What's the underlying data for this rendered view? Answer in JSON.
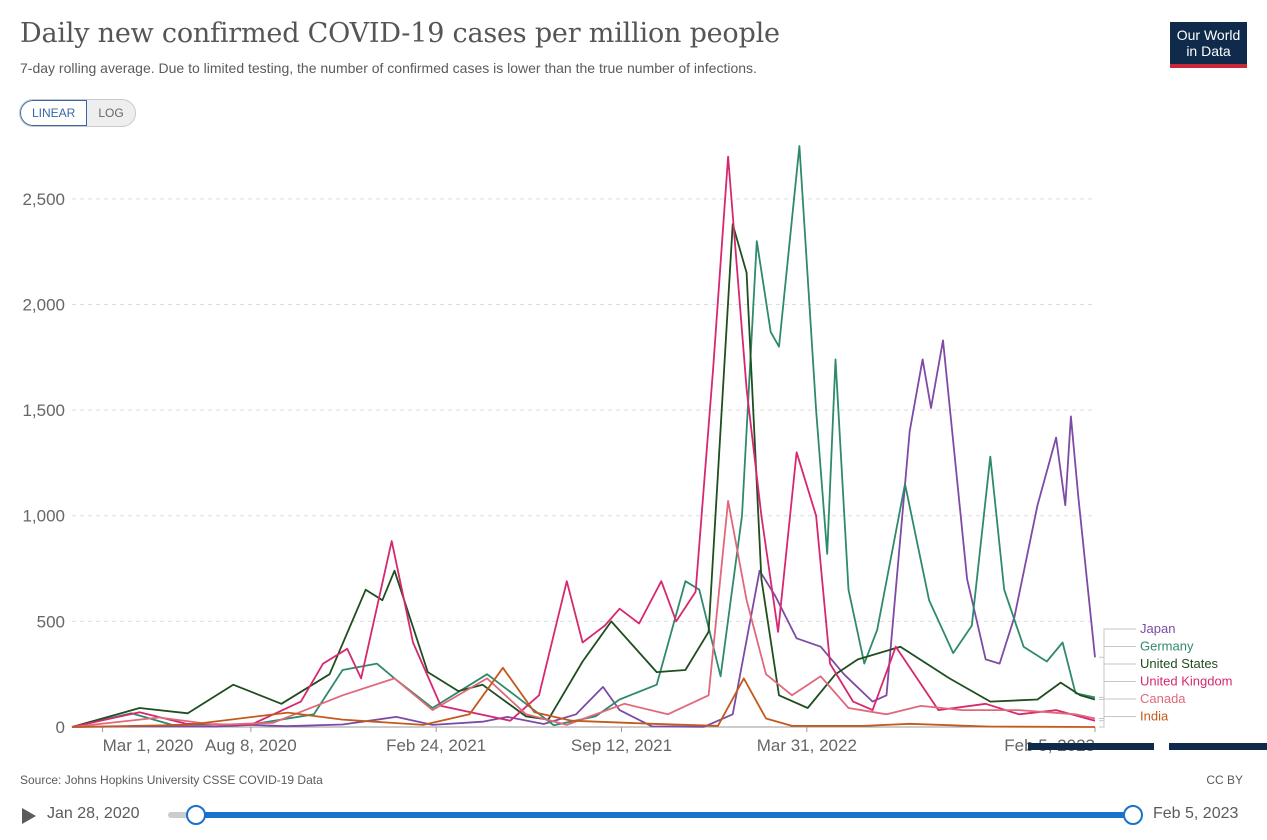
{
  "header": {
    "title": "Daily new confirmed COVID-19 cases per million people",
    "subtitle": "7-day rolling average. Due to limited testing, the number of confirmed cases is lower than the true number of infections.",
    "logo_line1": "Our World",
    "logo_line2": "in Data"
  },
  "scale_toggle": {
    "linear_label": "LINEAR",
    "log_label": "LOG",
    "selected": "LINEAR"
  },
  "footer": {
    "source": "Source: Johns Hopkins University CSSE COVID-19 Data",
    "license": "CC BY"
  },
  "timeline": {
    "start_label": "Jan 28, 2020",
    "end_label": "Feb 5, 2023"
  },
  "chart_data": {
    "type": "line",
    "title": "Daily new confirmed COVID-19 cases per million people",
    "subtitle": "7-day rolling average. Due to limited testing, the number of confirmed cases is lower than the true number of infections.",
    "x_range": [
      "2020-01-28",
      "2023-02-05"
    ],
    "x_ticks": [
      {
        "date": "2020-03-01",
        "label": "Mar 1, 2020"
      },
      {
        "date": "2020-08-08",
        "label": "Aug 8, 2020"
      },
      {
        "date": "2021-02-24",
        "label": "Feb 24, 2021"
      },
      {
        "date": "2021-09-12",
        "label": "Sep 12, 2021"
      },
      {
        "date": "2022-03-31",
        "label": "Mar 31, 2022"
      },
      {
        "date": "2023-02-05",
        "label": "Feb 5, 2023"
      }
    ],
    "y_ticks": [
      0,
      500,
      1000,
      1500,
      2000,
      2500
    ],
    "ylim": [
      0,
      2750
    ],
    "grid": "horizontal dashed",
    "legend": "right end of lines",
    "series": [
      {
        "name": "Japan",
        "color": "#7d4aa6",
        "points": [
          [
            "2020-01-28",
            0
          ],
          [
            "2020-04-15",
            3
          ],
          [
            "2020-07-01",
            2
          ],
          [
            "2020-08-08",
            10
          ],
          [
            "2020-09-15",
            4
          ],
          [
            "2020-11-15",
            12
          ],
          [
            "2021-01-12",
            48
          ],
          [
            "2021-02-20",
            10
          ],
          [
            "2021-04-15",
            25
          ],
          [
            "2021-05-12",
            48
          ],
          [
            "2021-06-20",
            14
          ],
          [
            "2021-07-25",
            60
          ],
          [
            "2021-08-23",
            190
          ],
          [
            "2021-09-10",
            80
          ],
          [
            "2021-10-15",
            3
          ],
          [
            "2021-12-10",
            1
          ],
          [
            "2022-01-10",
            60
          ],
          [
            "2022-02-08",
            740
          ],
          [
            "2022-02-25",
            620
          ],
          [
            "2022-03-20",
            420
          ],
          [
            "2022-04-15",
            380
          ],
          [
            "2022-05-10",
            250
          ],
          [
            "2022-06-10",
            120
          ],
          [
            "2022-06-25",
            150
          ],
          [
            "2022-07-20",
            1400
          ],
          [
            "2022-08-03",
            1740
          ],
          [
            "2022-08-12",
            1510
          ],
          [
            "2022-08-25",
            1830
          ],
          [
            "2022-09-20",
            700
          ],
          [
            "2022-10-10",
            320
          ],
          [
            "2022-10-25",
            300
          ],
          [
            "2022-11-10",
            520
          ],
          [
            "2022-12-05",
            1050
          ],
          [
            "2022-12-25",
            1370
          ],
          [
            "2023-01-04",
            1050
          ],
          [
            "2023-01-10",
            1470
          ],
          [
            "2023-01-18",
            1090
          ],
          [
            "2023-02-05",
            330
          ]
        ]
      },
      {
        "name": "Germany",
        "color": "#2f8a6b",
        "points": [
          [
            "2020-01-28",
            0
          ],
          [
            "2020-04-01",
            65
          ],
          [
            "2020-05-15",
            10
          ],
          [
            "2020-08-08",
            12
          ],
          [
            "2020-10-15",
            60
          ],
          [
            "2020-11-15",
            270
          ],
          [
            "2020-12-22",
            300
          ],
          [
            "2021-01-10",
            230
          ],
          [
            "2021-02-20",
            90
          ],
          [
            "2021-04-20",
            250
          ],
          [
            "2021-05-20",
            150
          ],
          [
            "2021-07-01",
            8
          ],
          [
            "2021-08-15",
            50
          ],
          [
            "2021-09-10",
            130
          ],
          [
            "2021-10-20",
            200
          ],
          [
            "2021-11-20",
            690
          ],
          [
            "2021-12-05",
            650
          ],
          [
            "2021-12-28",
            240
          ],
          [
            "2022-01-20",
            1000
          ],
          [
            "2022-02-05",
            2300
          ],
          [
            "2022-02-20",
            1870
          ],
          [
            "2022-03-01",
            1800
          ],
          [
            "2022-03-23",
            2750
          ],
          [
            "2022-04-10",
            1500
          ],
          [
            "2022-04-22",
            820
          ],
          [
            "2022-05-01",
            1740
          ],
          [
            "2022-05-15",
            650
          ],
          [
            "2022-06-01",
            300
          ],
          [
            "2022-06-15",
            460
          ],
          [
            "2022-07-15",
            1150
          ],
          [
            "2022-08-10",
            600
          ],
          [
            "2022-09-05",
            350
          ],
          [
            "2022-09-25",
            480
          ],
          [
            "2022-10-15",
            1280
          ],
          [
            "2022-10-30",
            650
          ],
          [
            "2022-11-20",
            380
          ],
          [
            "2022-12-15",
            310
          ],
          [
            "2023-01-01",
            400
          ],
          [
            "2023-01-15",
            160
          ],
          [
            "2023-02-05",
            140
          ]
        ]
      },
      {
        "name": "United States",
        "color": "#1f4e1f",
        "points": [
          [
            "2020-01-28",
            0
          ],
          [
            "2020-04-10",
            90
          ],
          [
            "2020-06-01",
            65
          ],
          [
            "2020-07-20",
            200
          ],
          [
            "2020-09-10",
            110
          ],
          [
            "2020-11-01",
            250
          ],
          [
            "2020-12-10",
            650
          ],
          [
            "2020-12-28",
            600
          ],
          [
            "2021-01-10",
            740
          ],
          [
            "2021-02-15",
            260
          ],
          [
            "2021-03-20",
            170
          ],
          [
            "2021-04-15",
            200
          ],
          [
            "2021-06-01",
            50
          ],
          [
            "2021-06-25",
            35
          ],
          [
            "2021-08-01",
            310
          ],
          [
            "2021-09-01",
            500
          ],
          [
            "2021-10-20",
            260
          ],
          [
            "2021-11-20",
            270
          ],
          [
            "2021-12-15",
            450
          ],
          [
            "2022-01-10",
            2380
          ],
          [
            "2022-01-25",
            2150
          ],
          [
            "2022-02-10",
            700
          ],
          [
            "2022-03-01",
            150
          ],
          [
            "2022-04-01",
            90
          ],
          [
            "2022-05-01",
            250
          ],
          [
            "2022-05-25",
            320
          ],
          [
            "2022-07-10",
            380
          ],
          [
            "2022-09-01",
            230
          ],
          [
            "2022-10-15",
            120
          ],
          [
            "2022-12-05",
            130
          ],
          [
            "2022-12-30",
            210
          ],
          [
            "2023-01-20",
            150
          ],
          [
            "2023-02-05",
            130
          ]
        ]
      },
      {
        "name": "United Kingdom",
        "color": "#d6286f",
        "points": [
          [
            "2020-01-28",
            0
          ],
          [
            "2020-04-10",
            70
          ],
          [
            "2020-05-30",
            15
          ],
          [
            "2020-08-08",
            10
          ],
          [
            "2020-10-01",
            120
          ],
          [
            "2020-10-25",
            300
          ],
          [
            "2020-11-20",
            370
          ],
          [
            "2020-12-05",
            230
          ],
          [
            "2021-01-07",
            880
          ],
          [
            "2021-01-30",
            400
          ],
          [
            "2021-03-01",
            100
          ],
          [
            "2021-05-15",
            30
          ],
          [
            "2021-06-15",
            150
          ],
          [
            "2021-07-15",
            690
          ],
          [
            "2021-08-01",
            400
          ],
          [
            "2021-08-25",
            480
          ],
          [
            "2021-09-10",
            560
          ],
          [
            "2021-10-01",
            490
          ],
          [
            "2021-10-25",
            690
          ],
          [
            "2021-11-10",
            500
          ],
          [
            "2021-12-01",
            640
          ],
          [
            "2021-12-20",
            1700
          ],
          [
            "2022-01-05",
            2700
          ],
          [
            "2022-01-25",
            1600
          ],
          [
            "2022-02-10",
            1000
          ],
          [
            "2022-02-28",
            450
          ],
          [
            "2022-03-20",
            1300
          ],
          [
            "2022-04-10",
            1000
          ],
          [
            "2022-04-25",
            300
          ],
          [
            "2022-05-20",
            120
          ],
          [
            "2022-06-10",
            80
          ],
          [
            "2022-07-05",
            380
          ],
          [
            "2022-07-25",
            250
          ],
          [
            "2022-08-20",
            80
          ],
          [
            "2022-10-10",
            110
          ],
          [
            "2022-11-15",
            60
          ],
          [
            "2022-12-25",
            80
          ],
          [
            "2023-02-05",
            30
          ]
        ]
      },
      {
        "name": "Canada",
        "color": "#e0687a",
        "points": [
          [
            "2020-01-28",
            0
          ],
          [
            "2020-05-01",
            45
          ],
          [
            "2020-07-01",
            10
          ],
          [
            "2020-09-01",
            20
          ],
          [
            "2020-11-15",
            150
          ],
          [
            "2021-01-10",
            230
          ],
          [
            "2021-02-20",
            80
          ],
          [
            "2021-04-20",
            230
          ],
          [
            "2021-06-01",
            60
          ],
          [
            "2021-07-15",
            10
          ],
          [
            "2021-09-15",
            110
          ],
          [
            "2021-11-01",
            60
          ],
          [
            "2021-12-15",
            150
          ],
          [
            "2022-01-05",
            1070
          ],
          [
            "2022-01-25",
            600
          ],
          [
            "2022-02-15",
            250
          ],
          [
            "2022-03-15",
            150
          ],
          [
            "2022-04-15",
            240
          ],
          [
            "2022-05-15",
            90
          ],
          [
            "2022-06-25",
            60
          ],
          [
            "2022-08-01",
            100
          ],
          [
            "2022-09-15",
            80
          ],
          [
            "2022-11-15",
            80
          ],
          [
            "2023-01-15",
            60
          ],
          [
            "2023-02-05",
            40
          ]
        ]
      },
      {
        "name": "India",
        "color": "#c25a1c",
        "points": [
          [
            "2020-01-28",
            0
          ],
          [
            "2020-06-01",
            10
          ],
          [
            "2020-09-17",
            68
          ],
          [
            "2020-11-15",
            35
          ],
          [
            "2021-02-10",
            10
          ],
          [
            "2021-04-01",
            60
          ],
          [
            "2021-05-07",
            280
          ],
          [
            "2021-06-10",
            70
          ],
          [
            "2021-07-20",
            30
          ],
          [
            "2021-10-15",
            15
          ],
          [
            "2021-12-25",
            5
          ],
          [
            "2022-01-22",
            230
          ],
          [
            "2022-02-15",
            40
          ],
          [
            "2022-03-15",
            5
          ],
          [
            "2022-06-01",
            5
          ],
          [
            "2022-07-20",
            15
          ],
          [
            "2022-10-15",
            2
          ],
          [
            "2023-02-05",
            0
          ]
        ]
      }
    ]
  }
}
